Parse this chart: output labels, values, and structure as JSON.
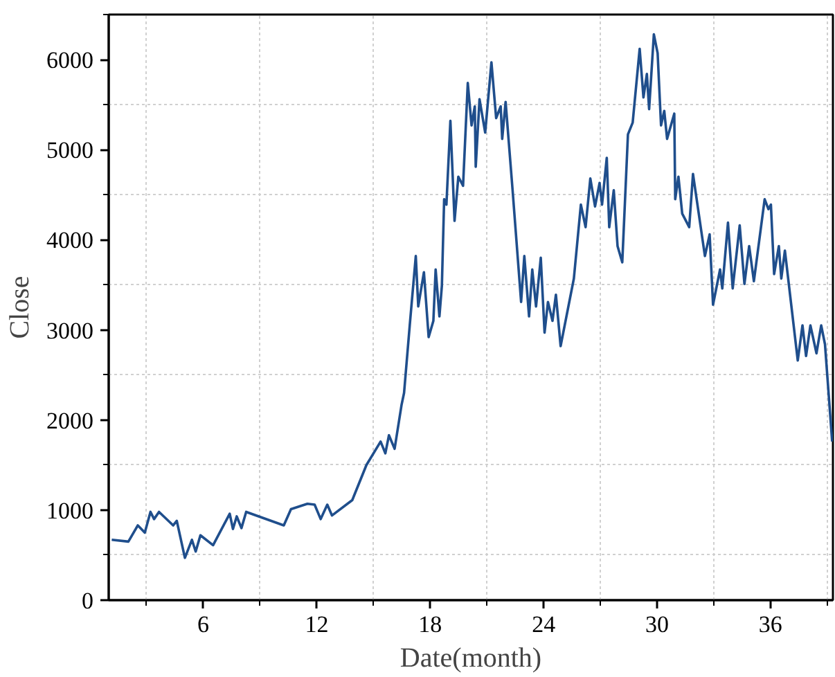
{
  "chart_data": {
    "type": "line",
    "xlabel": "Date(month)",
    "ylabel": "Close",
    "xlim": [
      1,
      39.3
    ],
    "ylim": [
      0,
      6500
    ],
    "xticks": [
      6,
      12,
      18,
      24,
      30,
      36
    ],
    "yticks": [
      0,
      1000,
      2000,
      3000,
      4000,
      5000,
      6000
    ],
    "grid": true,
    "line_style": "solid",
    "series": [
      {
        "color": "#1f4e8c",
        "x": [
          1.16,
          2.04,
          2.54,
          2.91,
          3.21,
          3.4,
          3.66,
          4.41,
          4.6,
          5.03,
          5.4,
          5.6,
          5.85,
          6.52,
          7.4,
          7.57,
          7.77,
          8.02,
          8.27,
          10.26,
          10.64,
          11.51,
          11.89,
          12.21,
          12.56,
          12.81,
          13.88,
          14.63,
          15.38,
          15.63,
          15.82,
          16.12,
          16.49,
          16.62,
          16.92,
          17.24,
          17.37,
          17.67,
          17.92,
          18.17,
          18.29,
          18.49,
          18.62,
          18.74,
          18.86,
          19.07,
          19.29,
          19.49,
          19.74,
          19.99,
          20.19,
          20.36,
          20.41,
          20.61,
          20.91,
          21.24,
          21.49,
          21.73,
          21.81,
          21.99,
          22.36,
          22.81,
          22.98,
          23.23,
          23.4,
          23.6,
          23.85,
          24.05,
          24.23,
          24.47,
          24.65,
          24.9,
          25.6,
          25.97,
          26.22,
          26.47,
          26.72,
          26.96,
          27.09,
          27.34,
          27.47,
          27.71,
          27.91,
          28.16,
          28.46,
          28.71,
          29.08,
          29.28,
          29.46,
          29.58,
          29.83,
          30.03,
          30.21,
          30.38,
          30.53,
          30.91,
          30.96,
          31.13,
          31.33,
          31.7,
          31.9,
          32.53,
          32.78,
          32.96,
          33.33,
          33.45,
          33.75,
          34.0,
          34.37,
          34.62,
          34.87,
          35.12,
          35.69,
          35.89,
          36.02,
          36.19,
          36.44,
          36.57,
          36.76,
          37.44,
          37.69,
          37.88,
          38.11,
          38.43,
          38.68,
          38.88,
          39.26
        ],
        "values": [
          670,
          650,
          830,
          750,
          980,
          900,
          980,
          830,
          880,
          470,
          670,
          540,
          720,
          610,
          960,
          790,
          930,
          800,
          980,
          830,
          1010,
          1070,
          1060,
          900,
          1060,
          940,
          1110,
          1500,
          1760,
          1630,
          1830,
          1680,
          2170,
          2300,
          3050,
          3820,
          3260,
          3640,
          2920,
          3100,
          3670,
          3150,
          3490,
          4450,
          4390,
          5320,
          4210,
          4700,
          4600,
          5740,
          5270,
          5480,
          4810,
          5560,
          5190,
          5970,
          5350,
          5480,
          5120,
          5530,
          4550,
          3310,
          3820,
          3150,
          3670,
          3260,
          3800,
          2970,
          3310,
          3100,
          3390,
          2820,
          3570,
          4390,
          4140,
          4680,
          4370,
          4630,
          4390,
          4910,
          4140,
          4550,
          3930,
          3750,
          5170,
          5300,
          6120,
          5580,
          5840,
          5450,
          6280,
          6070,
          5270,
          5430,
          5120,
          5400,
          4450,
          4700,
          4290,
          4140,
          4730,
          3820,
          4060,
          3280,
          3670,
          3460,
          4190,
          3460,
          4160,
          3510,
          3930,
          3540,
          4450,
          4340,
          4390,
          3620,
          3930,
          3570,
          3880,
          2660,
          3050,
          2710,
          3050,
          2740,
          3050,
          2840,
          1760
        ]
      }
    ]
  }
}
